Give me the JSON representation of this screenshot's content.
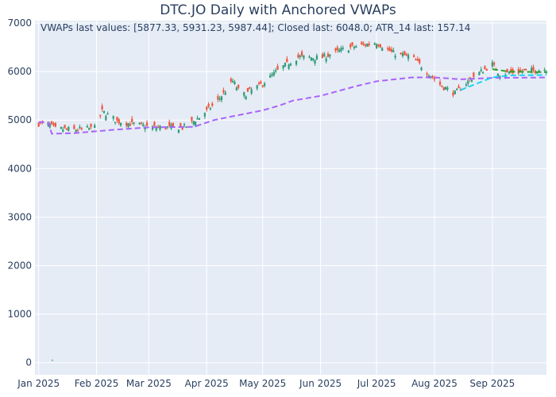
{
  "chart_data": {
    "type": "candlestick",
    "title": "DTC.JO Daily with Anchored VWAPs",
    "annotation": "VWAPs last values: [5877.33, 5931.23, 5987.44]; Closed last: 6048.0; ATR_14 last: 157.14",
    "xlabel": "",
    "ylabel": "",
    "ylim": [
      -250,
      7050
    ],
    "y_ticks": [
      0,
      1000,
      2000,
      3000,
      4000,
      5000,
      6000,
      7000
    ],
    "x_ticks": [
      {
        "label": "Jan 2025",
        "date": "2025-01-01"
      },
      {
        "label": "Feb 2025",
        "date": "2025-02-01"
      },
      {
        "label": "Mar 2025",
        "date": "2025-03-01"
      },
      {
        "label": "Apr 2025",
        "date": "2025-04-01"
      },
      {
        "label": "May 2025",
        "date": "2025-05-01"
      },
      {
        "label": "Jun 2025",
        "date": "2025-06-01"
      },
      {
        "label": "Jul 2025",
        "date": "2025-07-01"
      },
      {
        "label": "Aug 2025",
        "date": "2025-08-01"
      },
      {
        "label": "Sep 2025",
        "date": "2025-09-01"
      }
    ],
    "xlim": [
      "2024-12-30",
      "2025-09-30"
    ],
    "grid": true,
    "colors": {
      "background": "#E5ECF6",
      "grid": "#ffffff",
      "increasing": "#2E9B76",
      "decreasing": "#EF553B",
      "vwap_1": "#AB63FA",
      "vwap_2": "#19D3F3",
      "vwap_3": "#2CA02C",
      "text": "#2a3f5f"
    },
    "close_anchors": [
      {
        "date": "2025-01-01",
        "close": 4930
      },
      {
        "date": "2025-01-07",
        "close": 4900
      },
      {
        "date": "2025-01-10",
        "close": 4820
      },
      {
        "date": "2025-01-20",
        "close": 4800
      },
      {
        "date": "2025-01-31",
        "close": 4830
      },
      {
        "date": "2025-02-04",
        "close": 5180
      },
      {
        "date": "2025-02-12",
        "close": 4980
      },
      {
        "date": "2025-02-20",
        "close": 4920
      },
      {
        "date": "2025-03-03",
        "close": 4850
      },
      {
        "date": "2025-03-20",
        "close": 4850
      },
      {
        "date": "2025-03-28",
        "close": 5050
      },
      {
        "date": "2025-04-07",
        "close": 5400
      },
      {
        "date": "2025-04-15",
        "close": 5800
      },
      {
        "date": "2025-04-20",
        "close": 5500
      },
      {
        "date": "2025-05-01",
        "close": 5750
      },
      {
        "date": "2025-05-10",
        "close": 6050
      },
      {
        "date": "2025-05-20",
        "close": 6300
      },
      {
        "date": "2025-06-01",
        "close": 6280
      },
      {
        "date": "2025-06-15",
        "close": 6480
      },
      {
        "date": "2025-07-01",
        "close": 6600
      },
      {
        "date": "2025-07-10",
        "close": 6380
      },
      {
        "date": "2025-07-20",
        "close": 6300
      },
      {
        "date": "2025-07-28",
        "close": 6000
      },
      {
        "date": "2025-08-05",
        "close": 5700
      },
      {
        "date": "2025-08-12",
        "close": 5550
      },
      {
        "date": "2025-08-22",
        "close": 5900
      },
      {
        "date": "2025-09-01",
        "close": 6150
      },
      {
        "date": "2025-09-05",
        "close": 5950
      },
      {
        "date": "2025-09-15",
        "close": 6000
      },
      {
        "date": "2025-09-30",
        "close": 6048
      }
    ],
    "series": [
      {
        "points": [
          {
            "date": "2025-01-01",
            "value": 4960
          },
          {
            "date": "2025-01-06",
            "value": 4960
          },
          {
            "date": "2025-01-08",
            "value": 4720
          },
          {
            "date": "2025-01-20",
            "value": 4730
          },
          {
            "date": "2025-02-10",
            "value": 4800
          },
          {
            "date": "2025-03-01",
            "value": 4850
          },
          {
            "date": "2025-03-25",
            "value": 4860
          },
          {
            "date": "2025-04-05",
            "value": 5000
          },
          {
            "date": "2025-04-15",
            "value": 5080
          },
          {
            "date": "2025-05-01",
            "value": 5200
          },
          {
            "date": "2025-05-10",
            "value": 5300
          },
          {
            "date": "2025-05-17",
            "value": 5400
          },
          {
            "date": "2025-06-01",
            "value": 5500
          },
          {
            "date": "2025-06-20",
            "value": 5700
          },
          {
            "date": "2025-07-01",
            "value": 5800
          },
          {
            "date": "2025-07-20",
            "value": 5880
          },
          {
            "date": "2025-08-01",
            "value": 5880
          },
          {
            "date": "2025-08-15",
            "value": 5840
          },
          {
            "date": "2025-09-01",
            "value": 5870
          },
          {
            "date": "2025-09-30",
            "value": 5877.33
          }
        ]
      },
      {
        "points": [
          {
            "date": "2025-08-15",
            "value": 5620
          },
          {
            "date": "2025-09-01",
            "value": 5880
          },
          {
            "date": "2025-09-10",
            "value": 5920
          },
          {
            "date": "2025-09-30",
            "value": 5931.23
          }
        ]
      },
      {
        "points": [
          {
            "date": "2025-09-01",
            "value": 6050
          },
          {
            "date": "2025-09-10",
            "value": 6000
          },
          {
            "date": "2025-09-30",
            "value": 5987.44
          }
        ]
      }
    ],
    "outlier": {
      "date": "2025-01-08",
      "value": 50
    }
  }
}
